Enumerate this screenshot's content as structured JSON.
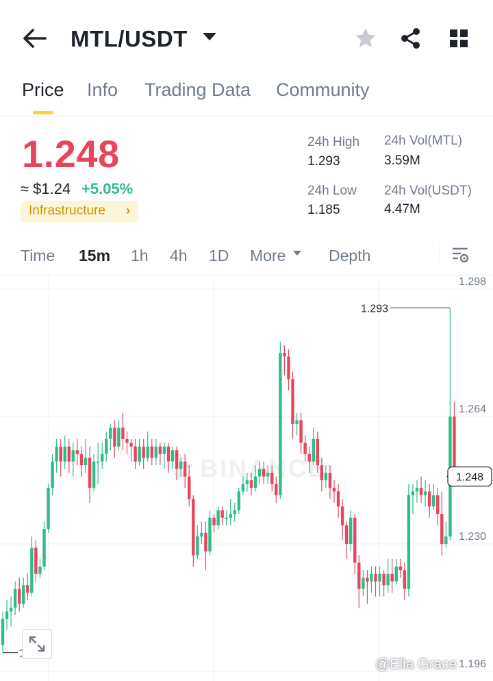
{
  "header": {
    "pair": "MTL/USDT",
    "icons": [
      "back-arrow-icon",
      "chevron-down-icon",
      "star-icon",
      "share-icon",
      "grid-icon"
    ]
  },
  "tabs": [
    {
      "label": "Price",
      "active": true
    },
    {
      "label": "Info",
      "active": false
    },
    {
      "label": "Trading Data",
      "active": false
    },
    {
      "label": "Community",
      "active": false
    }
  ],
  "ticker": {
    "price": "1.248",
    "fiat": "≈ $1.24",
    "change": "+5.05%",
    "tag": "Infrastructure",
    "tag_arrow": "›",
    "stats": {
      "high_label": "24h High",
      "high": "1.293",
      "low_label": "24h Low",
      "low": "1.185",
      "vol_base_label": "24h Vol(MTL)",
      "vol_base": "3.59M",
      "vol_quote_label": "24h Vol(USDT)",
      "vol_quote": "4.47M"
    },
    "colors": {
      "up": "#2ebd85",
      "down": "#e8455d",
      "accent": "#fcd535"
    }
  },
  "intervals": {
    "items": [
      {
        "label": "Time",
        "active": false
      },
      {
        "label": "15m",
        "active": true
      },
      {
        "label": "1h",
        "active": false
      },
      {
        "label": "4h",
        "active": false
      },
      {
        "label": "1D",
        "active": false
      },
      {
        "label": "More",
        "active": false
      },
      {
        "label": "Depth",
        "active": false
      }
    ],
    "settings_icon": "chart-settings-icon"
  },
  "chart_data": {
    "type": "candlestick",
    "title": "",
    "xlabel": "",
    "ylabel": "",
    "ylim": [
      1.196,
      1.298
    ],
    "y_ticks": [
      "1.298",
      "1.264",
      "1.230",
      "1.196"
    ],
    "max_label": "1.293",
    "min_label": "1.201",
    "last_price": "1.248",
    "watermark": "BINANCE",
    "grid": true,
    "candles": [
      [
        1.203,
        1.21,
        1.201,
        1.212
      ],
      [
        1.21,
        1.212,
        1.207,
        1.215
      ],
      [
        1.212,
        1.213,
        1.208,
        1.216
      ],
      [
        1.213,
        1.218,
        1.211,
        1.22
      ],
      [
        1.218,
        1.214,
        1.212,
        1.221
      ],
      [
        1.214,
        1.219,
        1.213,
        1.221
      ],
      [
        1.219,
        1.217,
        1.215,
        1.222
      ],
      [
        1.217,
        1.229,
        1.216,
        1.232
      ],
      [
        1.229,
        1.222,
        1.22,
        1.231
      ],
      [
        1.222,
        1.224,
        1.221,
        1.226
      ],
      [
        1.224,
        1.234,
        1.223,
        1.236
      ],
      [
        1.234,
        1.245,
        1.233,
        1.246
      ],
      [
        1.245,
        1.252,
        1.243,
        1.254
      ],
      [
        1.252,
        1.256,
        1.249,
        1.258
      ],
      [
        1.256,
        1.252,
        1.248,
        1.258
      ],
      [
        1.252,
        1.256,
        1.25,
        1.259
      ],
      [
        1.256,
        1.252,
        1.249,
        1.258
      ],
      [
        1.252,
        1.255,
        1.248,
        1.257
      ],
      [
        1.255,
        1.254,
        1.251,
        1.258
      ],
      [
        1.254,
        1.251,
        1.248,
        1.256
      ],
      [
        1.251,
        1.253,
        1.249,
        1.258
      ],
      [
        1.253,
        1.245,
        1.241,
        1.256
      ],
      [
        1.245,
        1.252,
        1.244,
        1.254
      ],
      [
        1.252,
        1.252,
        1.246,
        1.257
      ],
      [
        1.252,
        1.254,
        1.25,
        1.257
      ],
      [
        1.254,
        1.258,
        1.252,
        1.26
      ],
      [
        1.258,
        1.261,
        1.255,
        1.262
      ],
      [
        1.261,
        1.256,
        1.253,
        1.263
      ],
      [
        1.256,
        1.261,
        1.255,
        1.263
      ],
      [
        1.261,
        1.258,
        1.255,
        1.265
      ],
      [
        1.258,
        1.257,
        1.254,
        1.26
      ],
      [
        1.257,
        1.256,
        1.252,
        1.258
      ],
      [
        1.256,
        1.252,
        1.25,
        1.258
      ],
      [
        1.252,
        1.256,
        1.251,
        1.258
      ],
      [
        1.256,
        1.253,
        1.25,
        1.258
      ],
      [
        1.253,
        1.256,
        1.252,
        1.26
      ],
      [
        1.256,
        1.253,
        1.251,
        1.258
      ],
      [
        1.253,
        1.256,
        1.251,
        1.258
      ],
      [
        1.256,
        1.254,
        1.251,
        1.257
      ],
      [
        1.254,
        1.256,
        1.25,
        1.257
      ],
      [
        1.256,
        1.252,
        1.249,
        1.257
      ],
      [
        1.252,
        1.255,
        1.25,
        1.256
      ],
      [
        1.255,
        1.25,
        1.247,
        1.256
      ],
      [
        1.25,
        1.252,
        1.248,
        1.253
      ],
      [
        1.252,
        1.248,
        1.245,
        1.254
      ],
      [
        1.248,
        1.242,
        1.24,
        1.251
      ],
      [
        1.242,
        1.227,
        1.224,
        1.243
      ],
      [
        1.227,
        1.232,
        1.226,
        1.235
      ],
      [
        1.232,
        1.233,
        1.23,
        1.236
      ],
      [
        1.233,
        1.228,
        1.223,
        1.236
      ],
      [
        1.228,
        1.237,
        1.227,
        1.239
      ],
      [
        1.237,
        1.235,
        1.233,
        1.238
      ],
      [
        1.235,
        1.239,
        1.234,
        1.24
      ],
      [
        1.239,
        1.237,
        1.235,
        1.24
      ],
      [
        1.237,
        1.237,
        1.235,
        1.239
      ],
      [
        1.237,
        1.238,
        1.235,
        1.242
      ],
      [
        1.238,
        1.239,
        1.236,
        1.241
      ],
      [
        1.239,
        1.244,
        1.238,
        1.245
      ],
      [
        1.244,
        1.246,
        1.243,
        1.248
      ],
      [
        1.246,
        1.247,
        1.244,
        1.249
      ],
      [
        1.247,
        1.245,
        1.243,
        1.249
      ],
      [
        1.245,
        1.248,
        1.244,
        1.251
      ],
      [
        1.248,
        1.25,
        1.246,
        1.252
      ],
      [
        1.25,
        1.248,
        1.246,
        1.252
      ],
      [
        1.248,
        1.249,
        1.246,
        1.251
      ],
      [
        1.249,
        1.246,
        1.244,
        1.251
      ],
      [
        1.246,
        1.243,
        1.241,
        1.248
      ],
      [
        1.243,
        1.281,
        1.242,
        1.284
      ],
      [
        1.281,
        1.28,
        1.275,
        1.283
      ],
      [
        1.28,
        1.274,
        1.271,
        1.282
      ],
      [
        1.274,
        1.262,
        1.258,
        1.276
      ],
      [
        1.262,
        1.263,
        1.259,
        1.265
      ],
      [
        1.263,
        1.257,
        1.254,
        1.265
      ],
      [
        1.257,
        1.254,
        1.252,
        1.259
      ],
      [
        1.254,
        1.252,
        1.249,
        1.256
      ],
      [
        1.252,
        1.258,
        1.251,
        1.261
      ],
      [
        1.258,
        1.251,
        1.249,
        1.26
      ],
      [
        1.251,
        1.247,
        1.244,
        1.253
      ],
      [
        1.247,
        1.249,
        1.245,
        1.251
      ],
      [
        1.249,
        1.245,
        1.242,
        1.251
      ],
      [
        1.245,
        1.244,
        1.241,
        1.247
      ],
      [
        1.244,
        1.24,
        1.237,
        1.246
      ],
      [
        1.24,
        1.235,
        1.231,
        1.242
      ],
      [
        1.235,
        1.23,
        1.226,
        1.236
      ],
      [
        1.23,
        1.237,
        1.228,
        1.239
      ],
      [
        1.237,
        1.225,
        1.222,
        1.238
      ],
      [
        1.225,
        1.218,
        1.213,
        1.227
      ],
      [
        1.218,
        1.221,
        1.216,
        1.223
      ],
      [
        1.221,
        1.22,
        1.214,
        1.223
      ],
      [
        1.22,
        1.222,
        1.217,
        1.224
      ],
      [
        1.222,
        1.22,
        1.216,
        1.224
      ],
      [
        1.22,
        1.222,
        1.216,
        1.224
      ],
      [
        1.222,
        1.219,
        1.216,
        1.223
      ],
      [
        1.219,
        1.222,
        1.217,
        1.226
      ],
      [
        1.222,
        1.22,
        1.217,
        1.226
      ],
      [
        1.22,
        1.224,
        1.219,
        1.226
      ],
      [
        1.224,
        1.223,
        1.221,
        1.226
      ],
      [
        1.223,
        1.218,
        1.215,
        1.225
      ],
      [
        1.218,
        1.243,
        1.216,
        1.246
      ],
      [
        1.243,
        1.244,
        1.238,
        1.246
      ],
      [
        1.244,
        1.245,
        1.241,
        1.247
      ],
      [
        1.245,
        1.243,
        1.241,
        1.248
      ],
      [
        1.243,
        1.244,
        1.24,
        1.247
      ],
      [
        1.244,
        1.24,
        1.237,
        1.246
      ],
      [
        1.24,
        1.243,
        1.239,
        1.246
      ],
      [
        1.243,
        1.238,
        1.235,
        1.245
      ],
      [
        1.238,
        1.23,
        1.227,
        1.244
      ],
      [
        1.23,
        1.232,
        1.229,
        1.236
      ],
      [
        1.232,
        1.264,
        1.231,
        1.293
      ],
      [
        1.264,
        1.248,
        1.246,
        1.268
      ]
    ]
  },
  "overlay": {
    "credit": "@Ella Grace",
    "expand_icon": "expand-icon"
  }
}
